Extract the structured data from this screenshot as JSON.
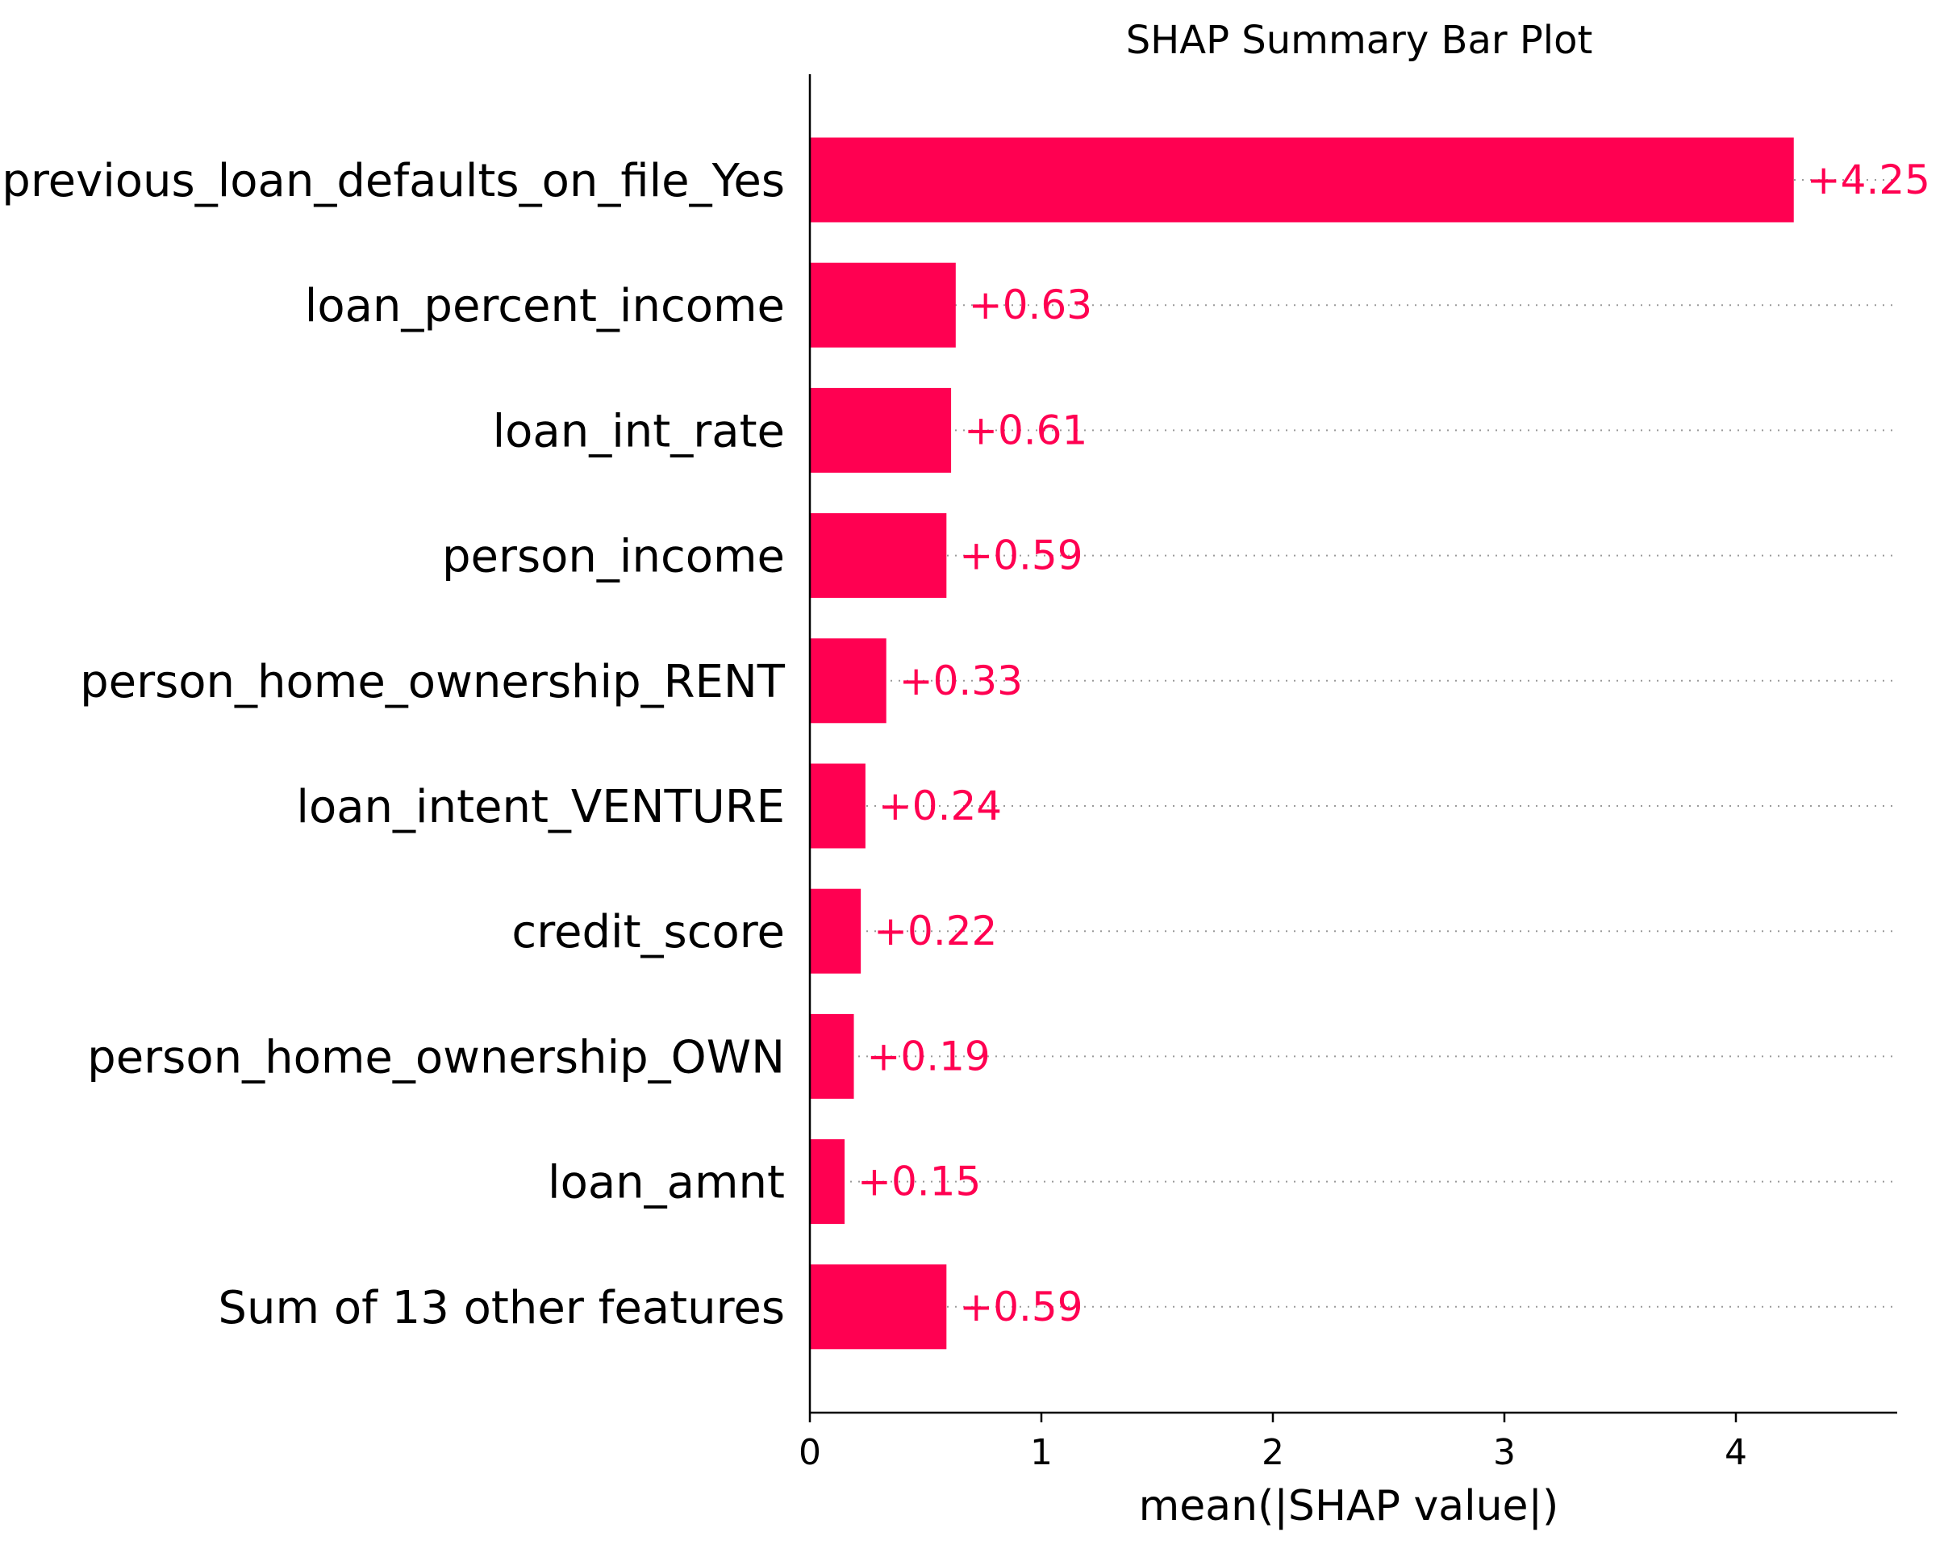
{
  "chart_data": {
    "type": "bar",
    "orientation": "horizontal",
    "title": "SHAP Summary Bar Plot",
    "xlabel": "mean(|SHAP value|)",
    "ylabel": "",
    "xlim": [
      0,
      4.7
    ],
    "x_ticks": [
      "0",
      "1",
      "2",
      "3",
      "4"
    ],
    "categories": [
      "previous_loan_defaults_on_file_Yes",
      "loan_percent_income",
      "loan_int_rate",
      "person_income",
      "person_home_ownership_RENT",
      "loan_intent_VENTURE",
      "credit_score",
      "person_home_ownership_OWN",
      "loan_amnt",
      "Sum of 13 other features"
    ],
    "values": [
      4.25,
      0.63,
      0.61,
      0.59,
      0.33,
      0.24,
      0.22,
      0.19,
      0.15,
      0.59
    ],
    "value_labels": [
      "+4.25",
      "+0.63",
      "+0.61",
      "+0.59",
      "+0.33",
      "+0.24",
      "+0.22",
      "+0.19",
      "+0.15",
      "+0.59"
    ],
    "bar_color": "#ff0051",
    "grid": "dotted row guides",
    "legend": "none"
  }
}
